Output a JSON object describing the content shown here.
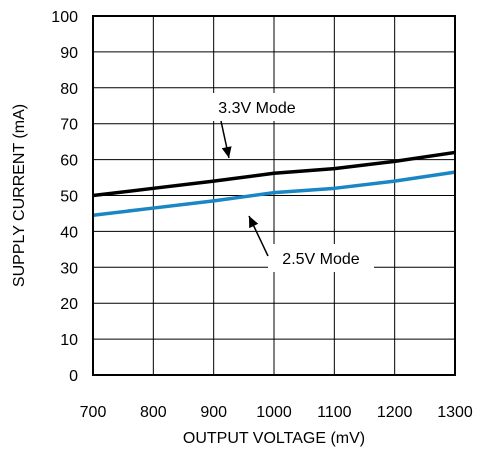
{
  "chart_data": {
    "type": "line",
    "xlabel": "OUTPUT VOLTAGE (mV)",
    "ylabel": "SUPPLY CURRENT (mA)",
    "xlim": [
      700,
      1300
    ],
    "ylim": [
      0,
      100
    ],
    "xticks": [
      700,
      800,
      900,
      1000,
      1100,
      1200,
      1300
    ],
    "yticks": [
      0,
      10,
      20,
      30,
      40,
      50,
      60,
      70,
      80,
      90,
      100
    ],
    "grid": true,
    "series": [
      {
        "name": "3.3V Mode",
        "color": "#000000",
        "x": [
          700,
          800,
          900,
          1000,
          1100,
          1200,
          1300
        ],
        "y": [
          50,
          52,
          54,
          56.2,
          57.5,
          59.5,
          62
        ]
      },
      {
        "name": "2.5V Mode",
        "color": "#1a87c4",
        "x": [
          700,
          800,
          900,
          1000,
          1100,
          1200,
          1300
        ],
        "y": [
          44.5,
          46.5,
          48.5,
          50.8,
          52,
          54,
          56.5
        ]
      }
    ],
    "annotations": [
      {
        "text": "3.3V Mode",
        "series": 0
      },
      {
        "text": "2.5V Mode",
        "series": 1
      }
    ]
  }
}
